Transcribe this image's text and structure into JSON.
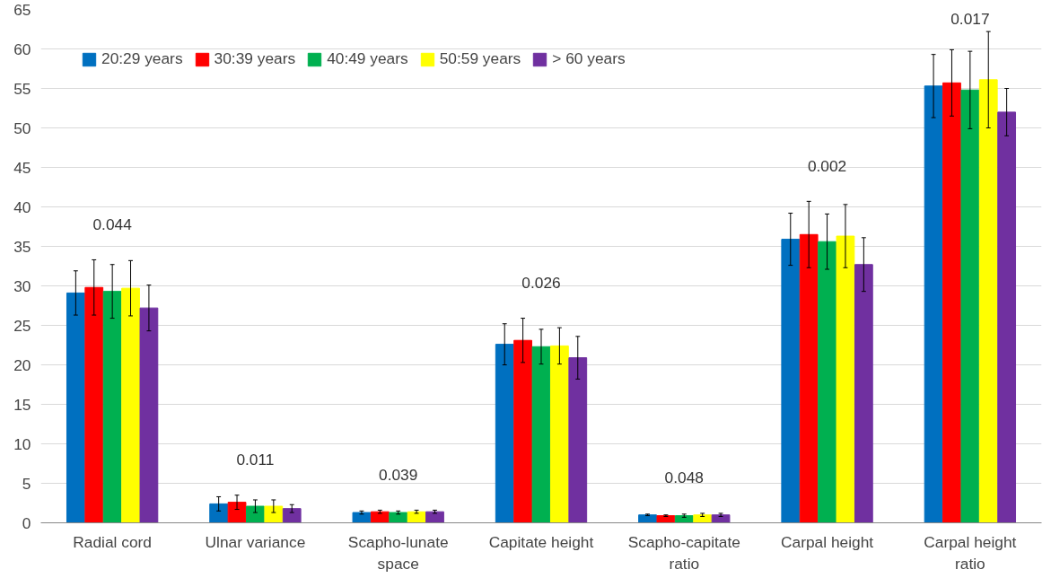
{
  "chart_data": {
    "type": "bar",
    "categories": [
      "Radial cord",
      "Ulnar variance",
      "Scapho-lunate space",
      "Capitate height",
      "Scapho-capitate ratio",
      "Carpal height",
      "Carpal height ratio"
    ],
    "series": [
      {
        "name": "20:29 years",
        "color": "#0070c0",
        "values": [
          29.1,
          2.4,
          1.3,
          22.6,
          1.0,
          35.9,
          55.3
        ],
        "errors": [
          2.8,
          0.9,
          0.2,
          2.6,
          0.1,
          3.3,
          4.0
        ]
      },
      {
        "name": "30:39 years",
        "color": "#ff0000",
        "values": [
          29.8,
          2.6,
          1.4,
          23.1,
          0.9,
          36.5,
          55.7
        ],
        "errors": [
          3.5,
          0.9,
          0.2,
          2.8,
          0.1,
          4.2,
          4.2
        ]
      },
      {
        "name": "40:49 years",
        "color": "#00b050",
        "values": [
          29.3,
          2.1,
          1.3,
          22.3,
          0.9,
          35.6,
          54.8
        ],
        "errors": [
          3.4,
          0.8,
          0.2,
          2.2,
          0.2,
          3.5,
          4.9
        ]
      },
      {
        "name": "50:59 years",
        "color": "#ffff00",
        "values": [
          29.7,
          2.1,
          1.4,
          22.4,
          1.0,
          36.3,
          56.1
        ],
        "errors": [
          3.5,
          0.8,
          0.2,
          2.3,
          0.2,
          4.0,
          6.1
        ]
      },
      {
        "name": "> 60 years",
        "color": "#7030a0",
        "values": [
          27.2,
          1.8,
          1.4,
          20.9,
          1.0,
          32.7,
          52.0
        ],
        "errors": [
          2.9,
          0.5,
          0.2,
          2.7,
          0.2,
          3.4,
          3.0
        ]
      }
    ],
    "annotations": [
      "0.044",
      "0.011",
      "0.039",
      "0.026",
      "0.048",
      "0.002",
      "0.017"
    ],
    "ylim": [
      0,
      65
    ],
    "yticks": [
      0,
      5,
      10,
      15,
      20,
      25,
      30,
      35,
      40,
      45,
      50,
      55,
      60,
      65
    ],
    "grid": "y",
    "legend": "top left"
  }
}
